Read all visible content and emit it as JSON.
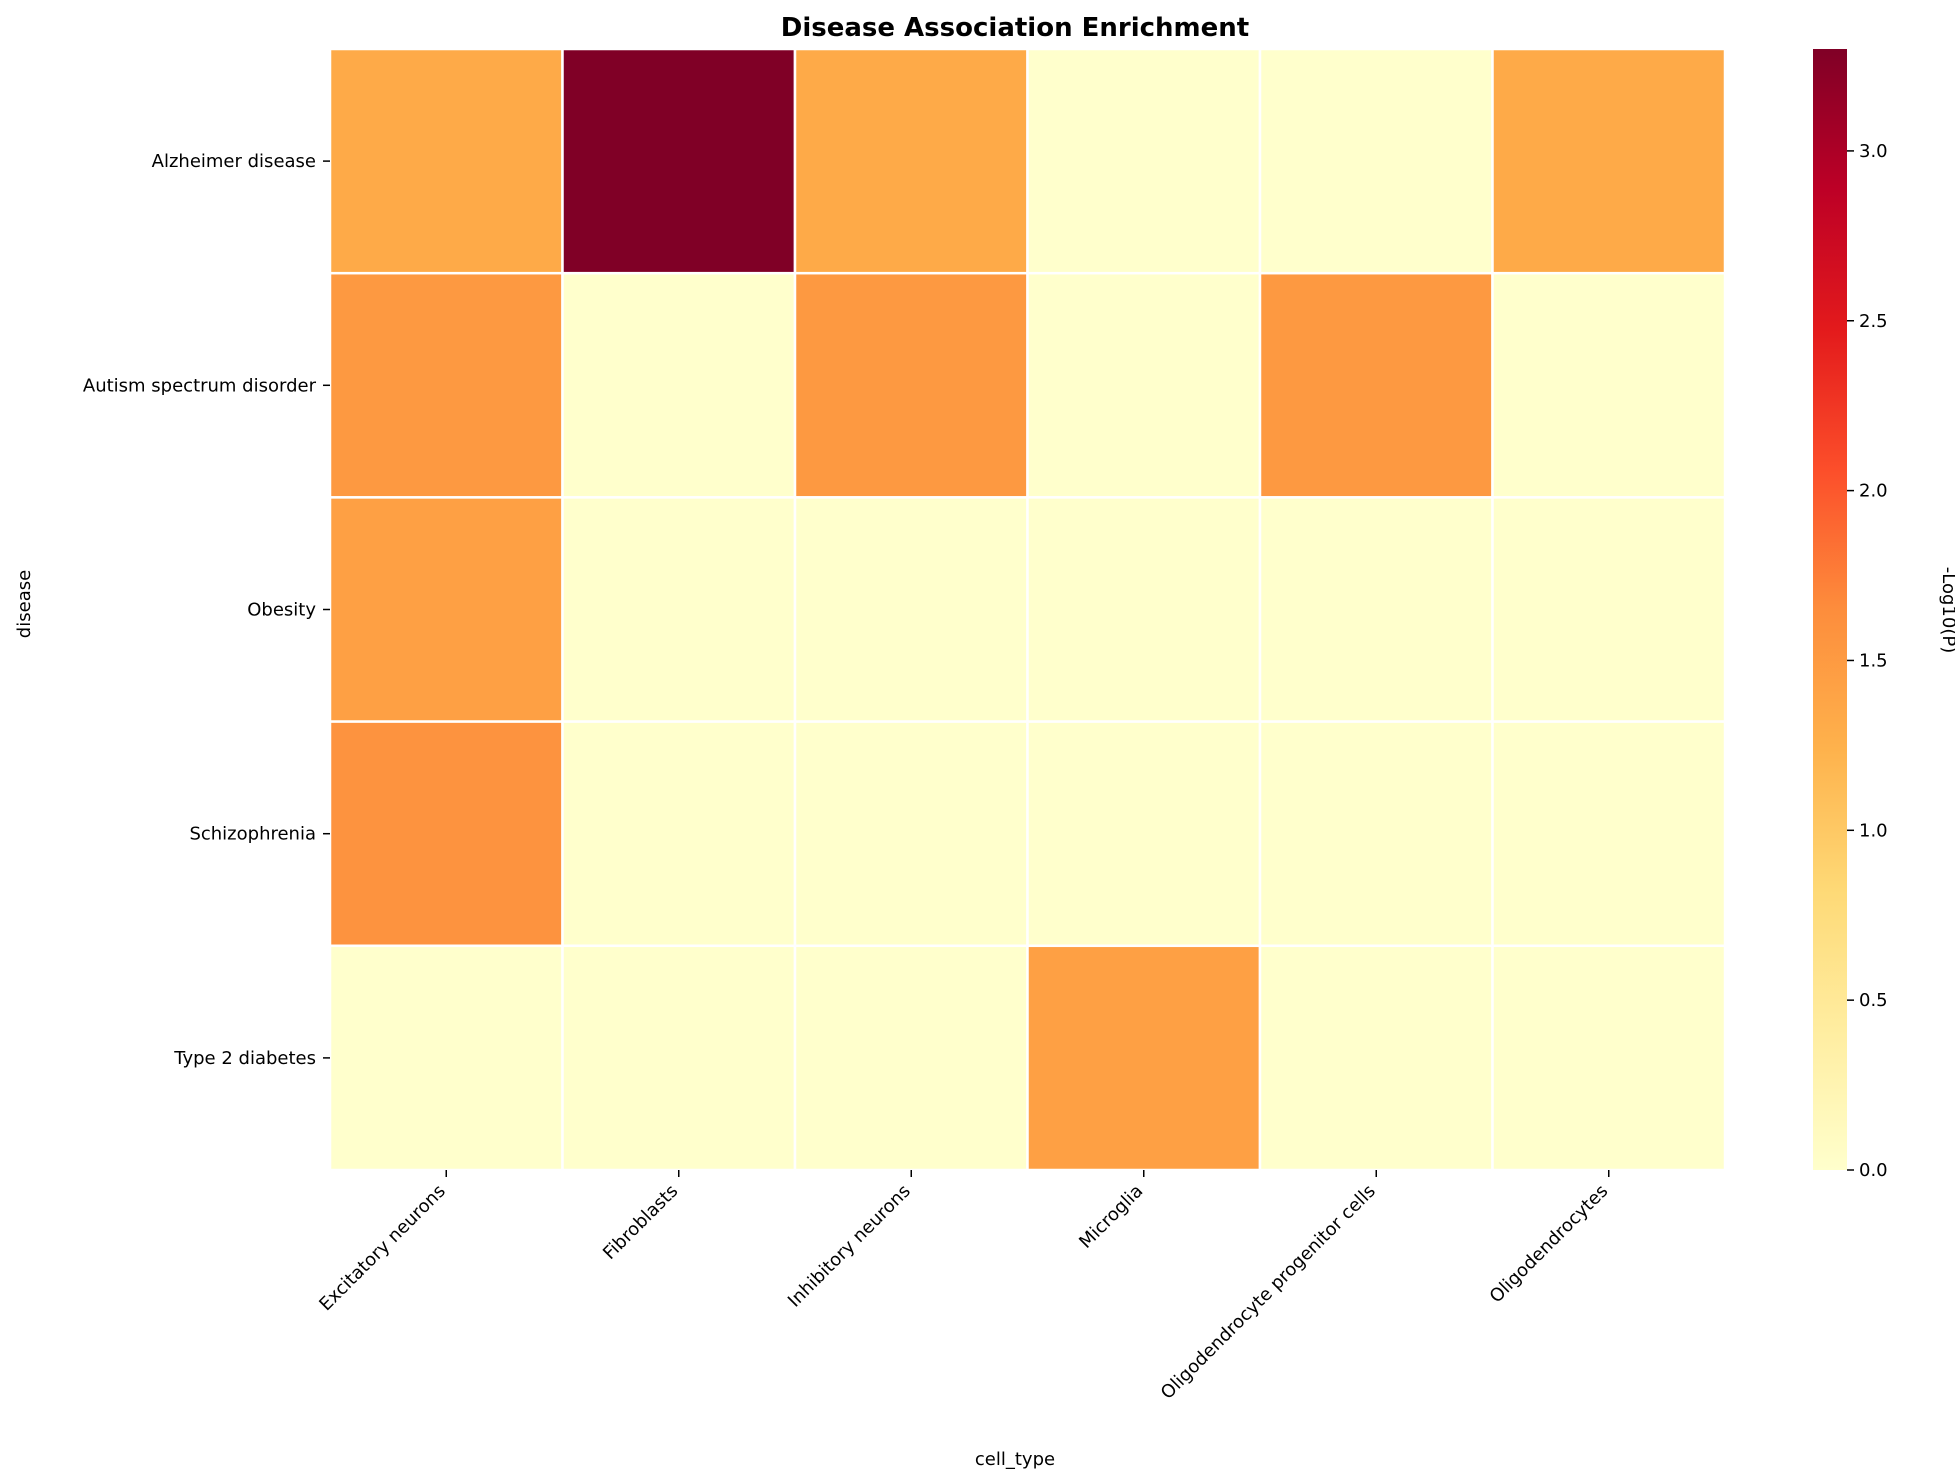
{
  "chart_data": {
    "type": "heatmap",
    "title": "Disease Association Enrichment",
    "xlabel": "cell_type",
    "ylabel": "disease",
    "colorbar_label": "-Log10(P)",
    "colormap": "YlOrRd",
    "x_categories": [
      "Excitatory neurons",
      "Fibroblasts",
      "Inhibitory neurons",
      "Microglia",
      "Oligodendrocyte progenitor cells",
      "Oligodendrocytes"
    ],
    "y_categories": [
      "Alzheimer disease",
      "Autism spectrum disorder",
      "Obesity",
      "Schizophrenia",
      "Type 2 diabetes"
    ],
    "values": [
      [
        1.33,
        3.3,
        1.33,
        0.0,
        0.0,
        1.33
      ],
      [
        1.52,
        0.0,
        1.52,
        0.0,
        1.52,
        0.0
      ],
      [
        1.44,
        0.0,
        0.0,
        0.0,
        0.0,
        0.0
      ],
      [
        1.58,
        0.0,
        0.0,
        0.0,
        0.0,
        0.0
      ],
      [
        0.0,
        0.0,
        0.0,
        1.44,
        0.0,
        0.0
      ]
    ],
    "vmin": 0.0,
    "vmax": 3.3,
    "colorbar_ticks": [
      0.0,
      0.5,
      1.0,
      1.5,
      2.0,
      2.5,
      3.0
    ],
    "colorbar_tick_labels": [
      "0.0",
      "0.5",
      "1.0",
      "1.5",
      "2.0",
      "2.5",
      "3.0"
    ],
    "grid": true,
    "cell_border_color": "#ffffff"
  }
}
